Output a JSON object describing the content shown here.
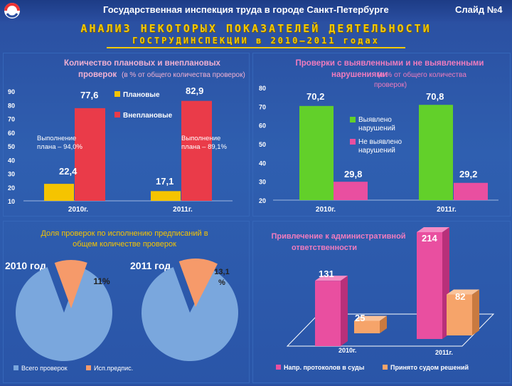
{
  "header": {
    "org": "Государственная инспекция труда в городе Санкт-Петербурге",
    "slide": "Слайд №4"
  },
  "title": {
    "line1": "АНАЛИЗ НЕКОТОРЫХ ПОКАЗАТЕЛЕЙ ДЕЯТЕЛЬНОСТИ",
    "line2": "ГОСТРУДИНСПЕКЦИИ в 2010–2011 годах"
  },
  "colors": {
    "yellow": "#f5c400",
    "red": "#ea3b49",
    "green": "#62d02a",
    "pink": "#e94fa0",
    "blue": "#7aa7dd",
    "salmon": "#f69a6a",
    "peach": "#f6a46a"
  },
  "chart_data": [
    {
      "type": "bar",
      "title": "Количество плановых и внеплановых",
      "title2": "проверок",
      "title_note": "(в % от общего количества проверок)",
      "categories": [
        "2010г.",
        "2011г."
      ],
      "series": [
        {
          "name": "Плановые",
          "values": [
            22.4,
            17.1
          ],
          "labels": [
            "22,4",
            "17,1"
          ]
        },
        {
          "name": "Внеплановые",
          "values": [
            77.6,
            82.9
          ],
          "labels": [
            "77,6",
            "82,9"
          ]
        }
      ],
      "ylim": [
        10,
        90
      ],
      "yticks": [
        "90",
        "80",
        "70",
        "60",
        "50",
        "40",
        "30",
        "20",
        "10"
      ],
      "annotations": [
        {
          "line1": "Выполнение",
          "line2": "плана – 94,0%"
        },
        {
          "line1": "Выполнение",
          "line2": "плана – 89,1%"
        }
      ]
    },
    {
      "type": "bar",
      "title": "Проверки с выявленными и не выявленными",
      "title2": "нарушениями",
      "title_note1": "(в % от общего количества",
      "title_note2": "проверок)",
      "categories": [
        "2010г.",
        "2011г."
      ],
      "series": [
        {
          "name": "Выявлено нарушений",
          "name_l1": "Выявлено",
          "name_l2": "нарушений",
          "values": [
            70.2,
            70.8
          ],
          "labels": [
            "70,2",
            "70,8"
          ]
        },
        {
          "name": "Не выявлено нарушений",
          "name_l1": "Не выявлено",
          "name_l2": "нарушений",
          "values": [
            29.8,
            29.2
          ],
          "labels": [
            "29,8",
            "29,2"
          ]
        }
      ],
      "ylim": [
        20,
        80
      ],
      "yticks": [
        "80",
        "70",
        "60",
        "50",
        "40",
        "30",
        "20"
      ]
    },
    {
      "type": "pie",
      "title_l1": "Доля проверок по исполнению предписаний в",
      "title_l2": "общем количестве проверок",
      "pies": [
        {
          "year": "2010 год",
          "share": 11,
          "label": "11%"
        },
        {
          "year": "2011 год",
          "share": 13.1,
          "label_l1": "13,1",
          "label_l2": "%"
        }
      ],
      "legend": [
        "Всего проверок",
        "Исп.предпис."
      ]
    },
    {
      "type": "bar",
      "title_l1": "Привлечение к административной",
      "title_l2": "ответственности",
      "categories": [
        "2010г.",
        "2011г."
      ],
      "series": [
        {
          "name": "Напр. протоколов в суды",
          "values": [
            131,
            214
          ],
          "labels": [
            "131",
            "214"
          ]
        },
        {
          "name": "Принято судом решений",
          "values": [
            25,
            82
          ],
          "labels": [
            "25",
            "82"
          ]
        }
      ]
    }
  ]
}
